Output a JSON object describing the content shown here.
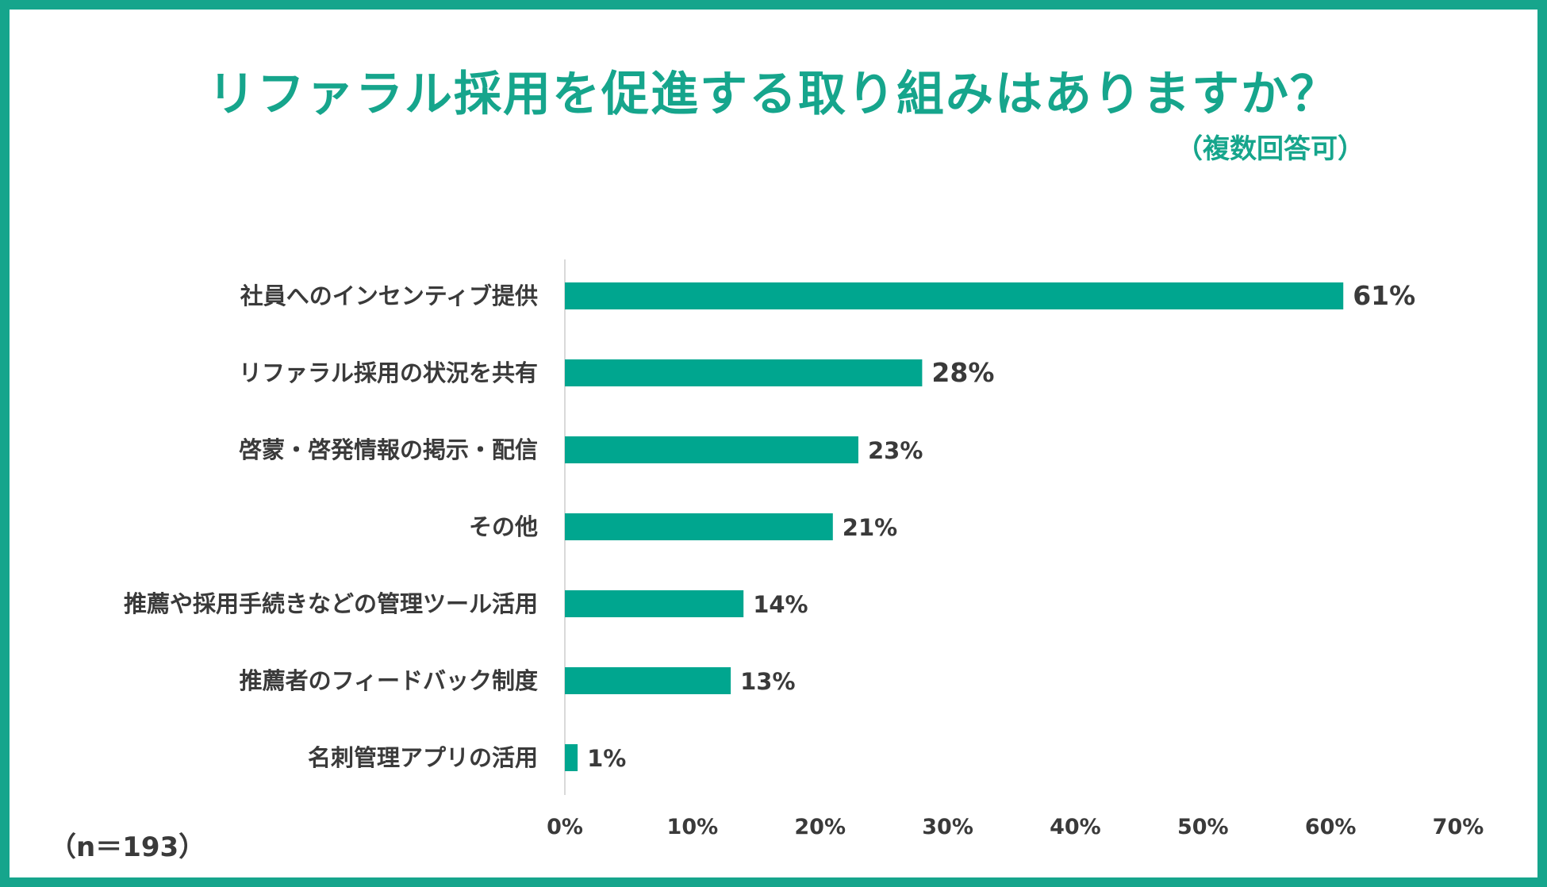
{
  "header": {
    "title": "リファラル採用を促進する取り組みはありますか？",
    "subtitle": "（複数回答可）"
  },
  "footer": {
    "sample_note": "（n＝193）"
  },
  "colors": {
    "accent": "#16a58c",
    "bar": "#00a68f",
    "text": "#3a3a3a",
    "axis": "#d9d9d9"
  },
  "chart_data": {
    "type": "bar",
    "orientation": "horizontal",
    "title": "リファラル採用を促進する取り組みはありますか？",
    "subtitle": "（複数回答可）",
    "categories": [
      "社員へのインセンティブ提供",
      "リファラル採用の状況を共有",
      "啓蒙・啓発情報の掲示・配信",
      "その他",
      "推薦や採用手続きなどの管理ツール活用",
      "推薦者のフィードバック制度",
      "名刺管理アプリの活用"
    ],
    "values": [
      61,
      28,
      23,
      21,
      14,
      13,
      1
    ],
    "data_labels": [
      "61%",
      "28%",
      "23%",
      "21%",
      "14%",
      "13%",
      "1%"
    ],
    "xlim": [
      0,
      70
    ],
    "x_ticks": [
      0,
      10,
      20,
      30,
      40,
      50,
      60,
      70
    ],
    "x_tick_labels": [
      "0%",
      "10%",
      "20%",
      "30%",
      "40%",
      "50%",
      "60%",
      "70%"
    ],
    "xlabel": "",
    "ylabel": "",
    "grid": false
  }
}
